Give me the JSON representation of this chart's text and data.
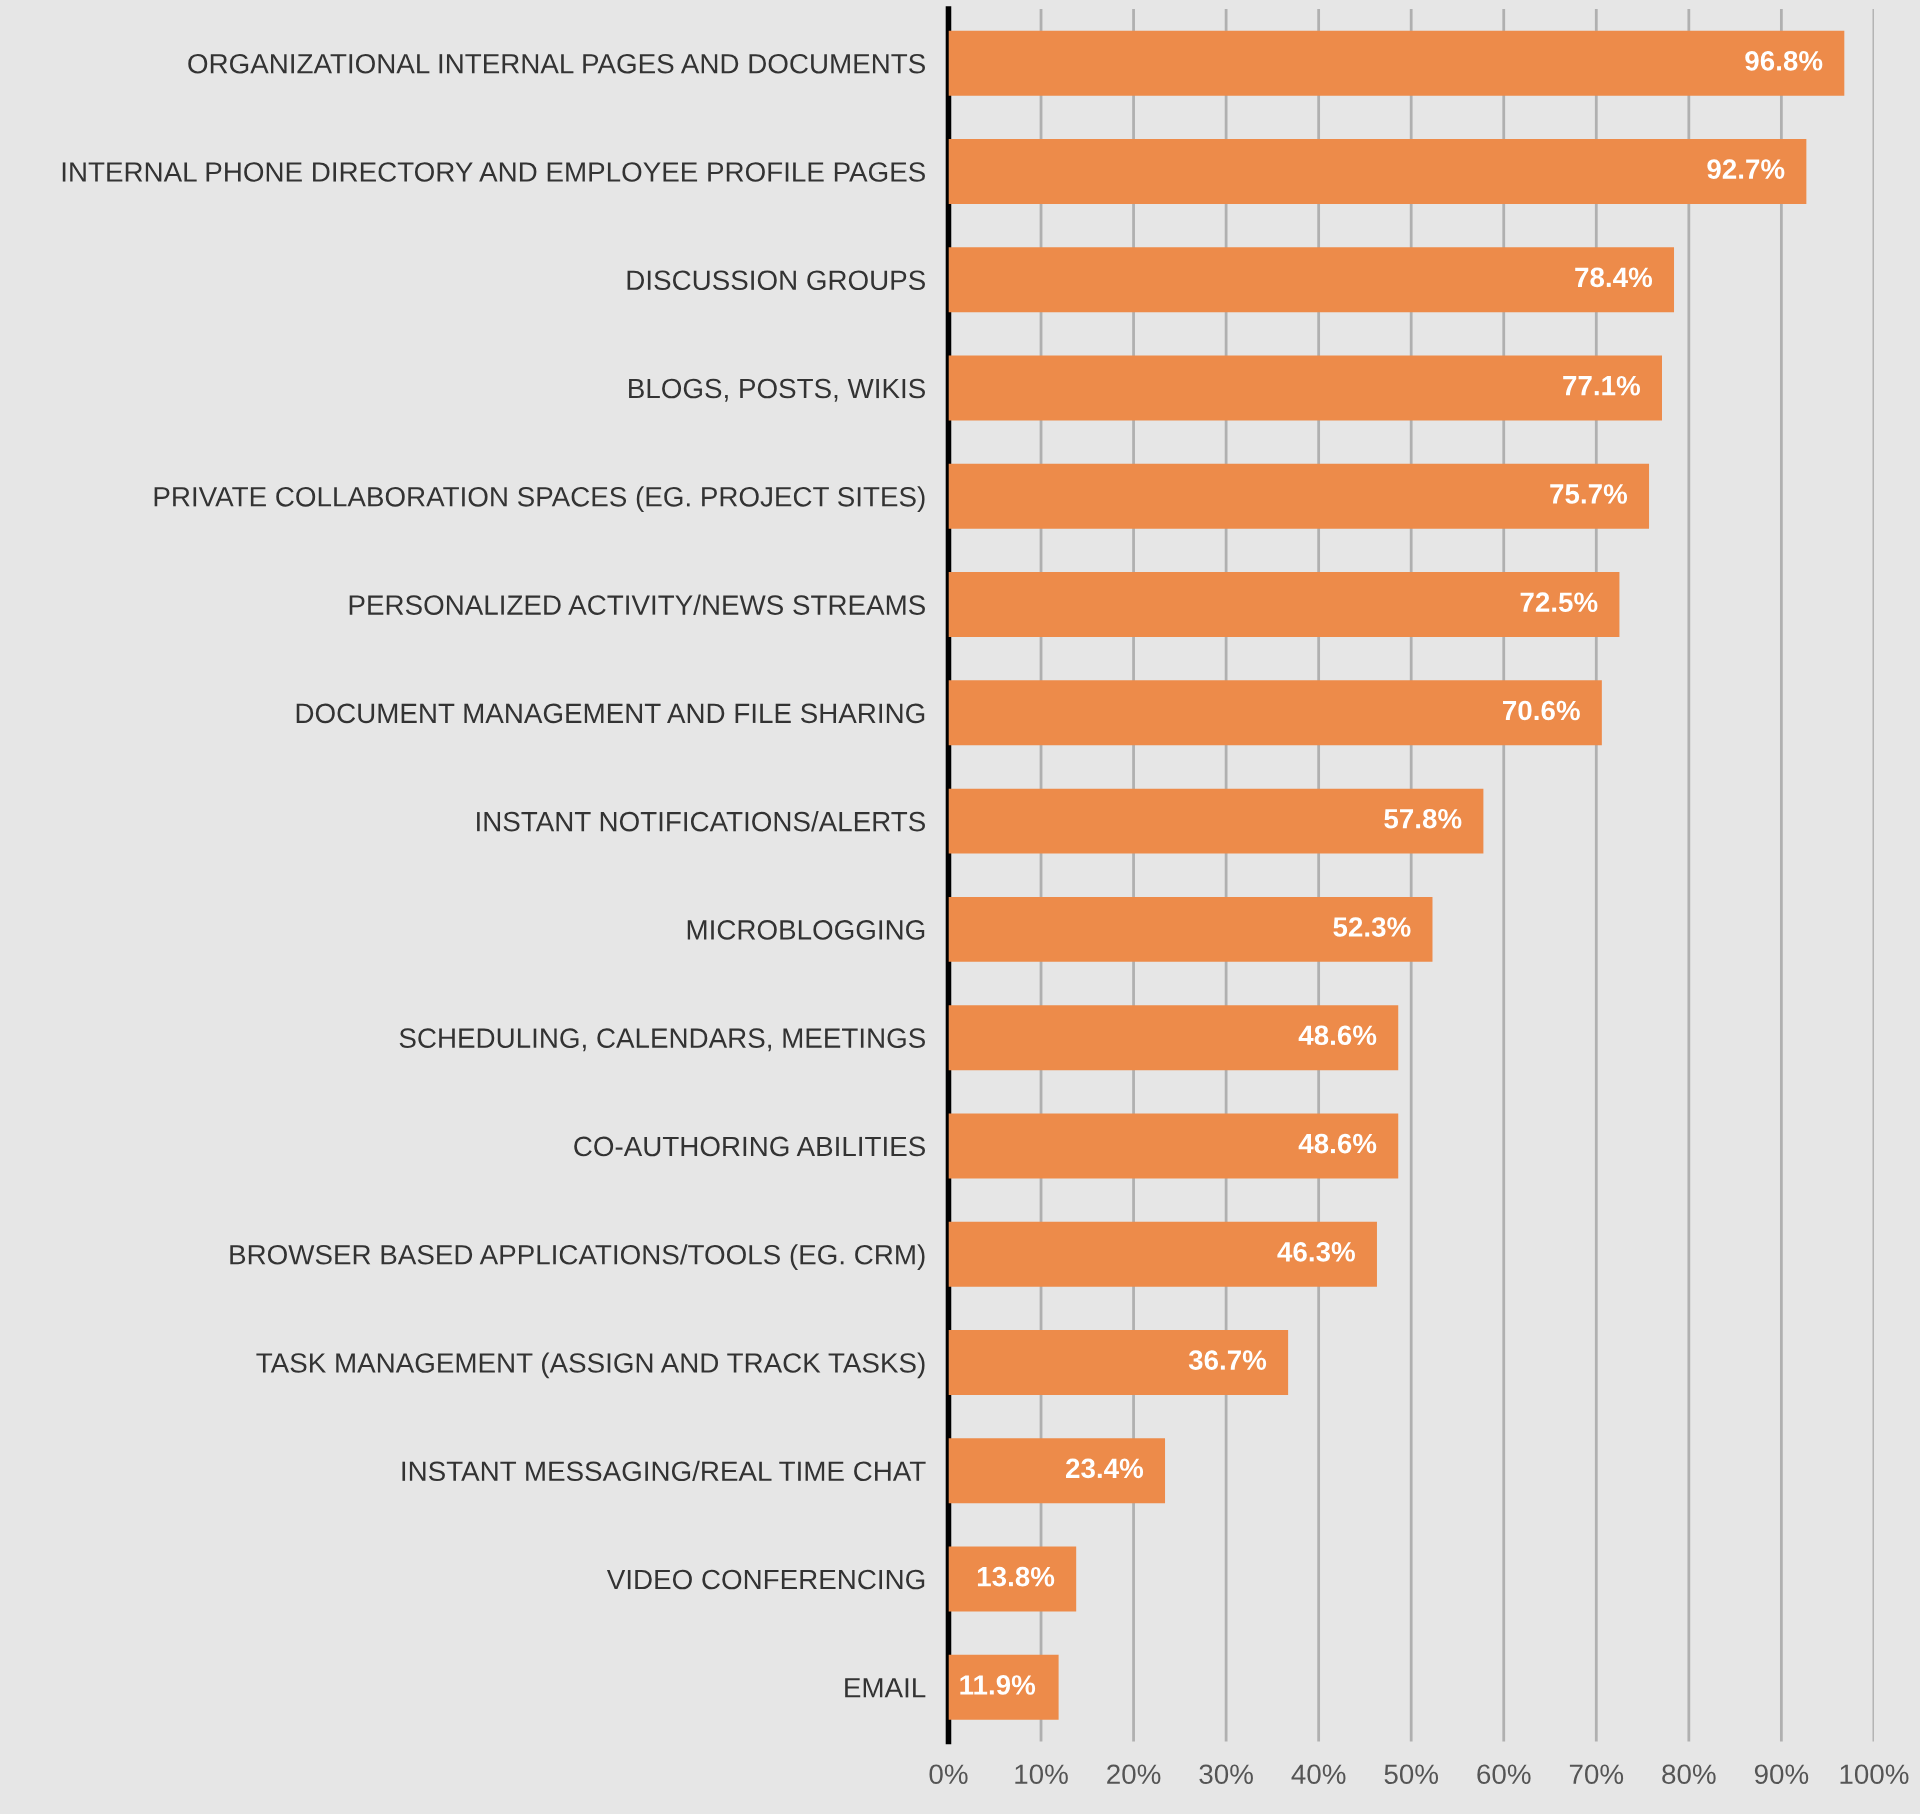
{
  "chart_data": {
    "type": "bar",
    "orientation": "horizontal",
    "categories": [
      "ORGANIZATIONAL INTERNAL PAGES AND DOCUMENTS",
      "INTERNAL PHONE DIRECTORY AND EMPLOYEE PROFILE PAGES",
      "DISCUSSION GROUPS",
      "BLOGS, POSTS, WIKIS",
      "PRIVATE COLLABORATION SPACES (EG. PROJECT SITES)",
      "PERSONALIZED ACTIVITY/NEWS STREAMS",
      "DOCUMENT MANAGEMENT AND FILE SHARING",
      "INSTANT NOTIFICATIONS/ALERTS",
      "MICROBLOGGING",
      "SCHEDULING, CALENDARS, MEETINGS",
      "CO-AUTHORING ABILITIES",
      "BROWSER BASED APPLICATIONS/TOOLS (EG. CRM)",
      "TASK MANAGEMENT (ASSIGN AND TRACK TASKS)",
      "INSTANT MESSAGING/REAL TIME CHAT",
      "VIDEO CONFERENCING",
      "EMAIL"
    ],
    "values": [
      96.8,
      92.7,
      78.4,
      77.1,
      75.7,
      72.5,
      70.6,
      57.8,
      52.3,
      48.6,
      48.6,
      46.3,
      36.7,
      23.4,
      13.8,
      11.9
    ],
    "value_labels": [
      "96.8%",
      "92.7%",
      "78.4%",
      "77.1%",
      "75.7%",
      "72.5%",
      "70.6%",
      "57.8%",
      "52.3%",
      "48.6%",
      "48.6%",
      "46.3%",
      "36.7%",
      "23.4%",
      "13.8%",
      "11.9%"
    ],
    "color": "#ed8b4a",
    "xlim": [
      0,
      100
    ],
    "xticks": [
      {
        "value": 0,
        "label": "0%"
      },
      {
        "value": 10,
        "label": "10%"
      },
      {
        "value": 20,
        "label": "20%"
      },
      {
        "value": 30,
        "label": "30%"
      },
      {
        "value": 40,
        "label": "40%"
      },
      {
        "value": 50,
        "label": "50%"
      },
      {
        "value": 60,
        "label": "60%"
      },
      {
        "value": 70,
        "label": "70%"
      },
      {
        "value": 80,
        "label": "80%"
      },
      {
        "value": 90,
        "label": "90%"
      },
      {
        "value": 100,
        "label": "100%"
      }
    ],
    "grid": "x"
  }
}
